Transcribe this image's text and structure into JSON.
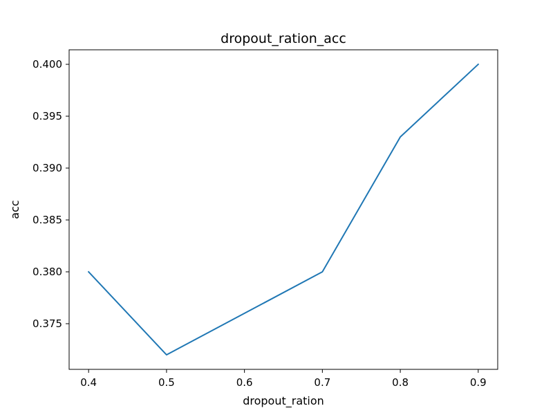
{
  "chart_data": {
    "type": "line",
    "title": "dropout_ration_acc",
    "xlabel": "dropout_ration",
    "ylabel": "acc",
    "x": [
      0.4,
      0.5,
      0.7,
      0.8,
      0.9
    ],
    "series": [
      {
        "values": [
          0.38,
          0.372,
          0.38,
          0.393,
          0.4
        ],
        "color": "#1f77b4"
      }
    ],
    "xlim": [
      0.375,
      0.925
    ],
    "ylim": [
      0.3706,
      0.4014
    ],
    "xticks": [
      0.4,
      0.5,
      0.6,
      0.7,
      0.8,
      0.9
    ],
    "xtick_labels": [
      "0.4",
      "0.5",
      "0.6",
      "0.7",
      "0.8",
      "0.9"
    ],
    "yticks": [
      0.375,
      0.38,
      0.385,
      0.39,
      0.395,
      0.4
    ],
    "ytick_labels": [
      "0.375",
      "0.380",
      "0.385",
      "0.390",
      "0.395",
      "0.400"
    ],
    "grid": false,
    "legend": "none"
  }
}
